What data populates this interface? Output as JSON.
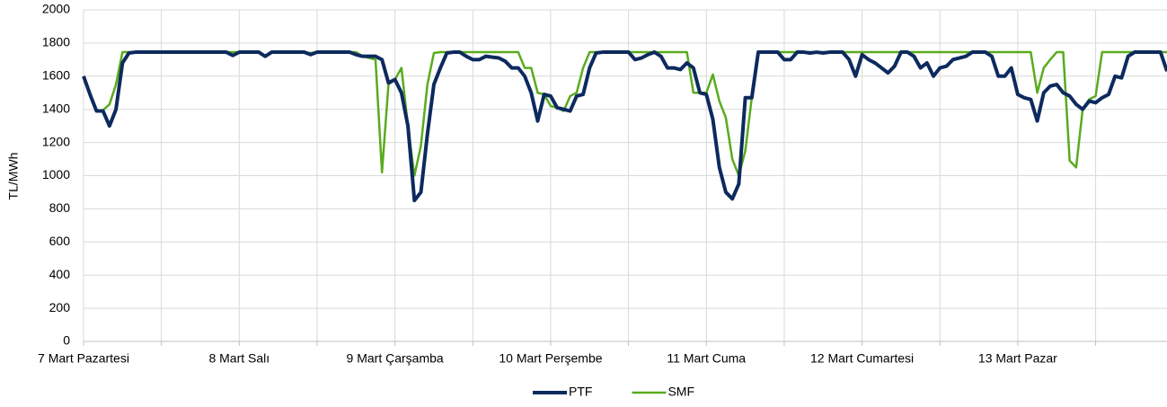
{
  "chart_data": {
    "type": "line",
    "ylabel": "TL/MWh",
    "x": [
      0,
      1,
      2,
      3,
      4,
      5,
      6,
      7,
      8,
      9,
      10,
      11,
      12,
      13,
      14,
      15,
      16,
      17,
      18,
      19,
      20,
      21,
      22,
      23,
      24,
      25,
      26,
      27,
      28,
      29,
      30,
      31,
      32,
      33,
      34,
      35,
      36,
      37,
      38,
      39,
      40,
      41,
      42,
      43,
      44,
      45,
      46,
      47,
      48,
      49,
      50,
      51,
      52,
      53,
      54,
      55,
      56,
      57,
      58,
      59,
      60,
      61,
      62,
      63,
      64,
      65,
      66,
      67,
      68,
      69,
      70,
      71,
      72,
      73,
      74,
      75,
      76,
      77,
      78,
      79,
      80,
      81,
      82,
      83,
      84,
      85,
      86,
      87,
      88,
      89,
      90,
      91,
      92,
      93,
      94,
      95,
      96,
      97,
      98,
      99,
      100,
      101,
      102,
      103,
      104,
      105,
      106,
      107,
      108,
      109,
      110,
      111,
      112,
      113,
      114,
      115,
      116,
      117,
      118,
      119,
      120,
      121,
      122,
      123,
      124,
      125,
      126,
      127,
      128,
      129,
      130,
      131,
      132,
      133,
      134,
      135,
      136,
      137,
      138,
      139,
      140,
      141,
      142,
      143,
      144,
      145,
      146,
      147,
      148,
      149,
      150,
      151,
      152,
      153,
      154,
      155,
      156,
      157,
      158,
      159,
      160,
      161,
      162,
      163,
      164,
      165,
      166,
      167
    ],
    "series": [
      {
        "name": "PTF",
        "color": "#0d2a5e",
        "width": 4,
        "values": [
          1600,
          1490,
          1390,
          1390,
          1300,
          1400,
          1680,
          1740,
          1745,
          1745,
          1745,
          1745,
          1745,
          1745,
          1745,
          1745,
          1745,
          1745,
          1745,
          1745,
          1745,
          1745,
          1745,
          1725,
          1745,
          1745,
          1745,
          1745,
          1720,
          1745,
          1745,
          1745,
          1745,
          1745,
          1745,
          1730,
          1745,
          1745,
          1745,
          1745,
          1745,
          1745,
          1730,
          1720,
          1720,
          1720,
          1700,
          1560,
          1580,
          1500,
          1300,
          850,
          900,
          1250,
          1550,
          1650,
          1740,
          1745,
          1745,
          1720,
          1700,
          1700,
          1720,
          1715,
          1710,
          1690,
          1650,
          1650,
          1600,
          1500,
          1330,
          1490,
          1480,
          1410,
          1400,
          1390,
          1480,
          1490,
          1650,
          1740,
          1745,
          1745,
          1745,
          1745,
          1745,
          1700,
          1710,
          1730,
          1745,
          1720,
          1650,
          1650,
          1640,
          1680,
          1650,
          1500,
          1490,
          1340,
          1050,
          900,
          860,
          950,
          1470,
          1470,
          1745,
          1745,
          1745,
          1745,
          1700,
          1700,
          1745,
          1745,
          1740,
          1745,
          1740,
          1745,
          1745,
          1745,
          1700,
          1600,
          1730,
          1700,
          1680,
          1650,
          1620,
          1660,
          1745,
          1745,
          1720,
          1650,
          1680,
          1600,
          1650,
          1660,
          1700,
          1710,
          1720,
          1745,
          1745,
          1745,
          1720,
          1600,
          1600,
          1650,
          1490,
          1470,
          1460,
          1330,
          1500,
          1540,
          1550,
          1500,
          1480,
          1430,
          1400,
          1450,
          1440,
          1470,
          1490,
          1600,
          1590,
          1720,
          1745,
          1745,
          1745,
          1745,
          1745,
          1630
        ]
      },
      {
        "name": "SMF",
        "color": "#5aab1e",
        "width": 2.5,
        "values": [
          1600,
          1490,
          1390,
          1395,
          1430,
          1550,
          1745,
          1745,
          1745,
          1745,
          1745,
          1745,
          1745,
          1745,
          1745,
          1745,
          1745,
          1745,
          1745,
          1745,
          1745,
          1745,
          1745,
          1745,
          1745,
          1745,
          1745,
          1745,
          1720,
          1745,
          1745,
          1745,
          1745,
          1745,
          1745,
          1740,
          1745,
          1745,
          1745,
          1745,
          1745,
          1745,
          1745,
          1720,
          1710,
          1700,
          1020,
          1550,
          1580,
          1650,
          1300,
          1000,
          1180,
          1550,
          1740,
          1745,
          1745,
          1745,
          1745,
          1745,
          1745,
          1745,
          1745,
          1745,
          1745,
          1745,
          1745,
          1745,
          1650,
          1650,
          1500,
          1490,
          1420,
          1410,
          1390,
          1480,
          1500,
          1650,
          1745,
          1745,
          1745,
          1745,
          1745,
          1745,
          1745,
          1745,
          1745,
          1745,
          1745,
          1745,
          1745,
          1745,
          1745,
          1745,
          1500,
          1500,
          1500,
          1610,
          1450,
          1350,
          1100,
          1000,
          1150,
          1470,
          1745,
          1745,
          1745,
          1745,
          1745,
          1745,
          1745,
          1745,
          1745,
          1745,
          1745,
          1745,
          1745,
          1745,
          1745,
          1745,
          1745,
          1745,
          1745,
          1745,
          1745,
          1745,
          1745,
          1745,
          1745,
          1745,
          1745,
          1745,
          1745,
          1745,
          1745,
          1745,
          1745,
          1745,
          1745,
          1745,
          1745,
          1745,
          1745,
          1745,
          1745,
          1745,
          1745,
          1500,
          1650,
          1700,
          1745,
          1745,
          1090,
          1050,
          1400,
          1460,
          1480,
          1745,
          1745,
          1745,
          1745,
          1745,
          1745,
          1745,
          1745,
          1745,
          1745,
          1745
        ]
      }
    ],
    "xlim": [
      0,
      167
    ],
    "xticks": [
      {
        "value": 0,
        "label": "7 Mart Pazartesi"
      },
      {
        "value": 24,
        "label": "8 Mart Salı"
      },
      {
        "value": 48,
        "label": "9 Mart Çarşamba"
      },
      {
        "value": 72,
        "label": "10 Mart Perşembe"
      },
      {
        "value": 96,
        "label": "11 Mart Cuma"
      },
      {
        "value": 120,
        "label": "12 Mart Cumartesi"
      },
      {
        "value": 144,
        "label": "13 Mart Pazar"
      }
    ],
    "xminor": [
      12,
      36,
      60,
      84,
      108,
      132,
      156
    ],
    "ylim": [
      0,
      2000
    ],
    "yticks": [
      0,
      200,
      400,
      600,
      800,
      1000,
      1200,
      1400,
      1600,
      1800,
      2000
    ],
    "grid": true,
    "legend": "bottom"
  }
}
